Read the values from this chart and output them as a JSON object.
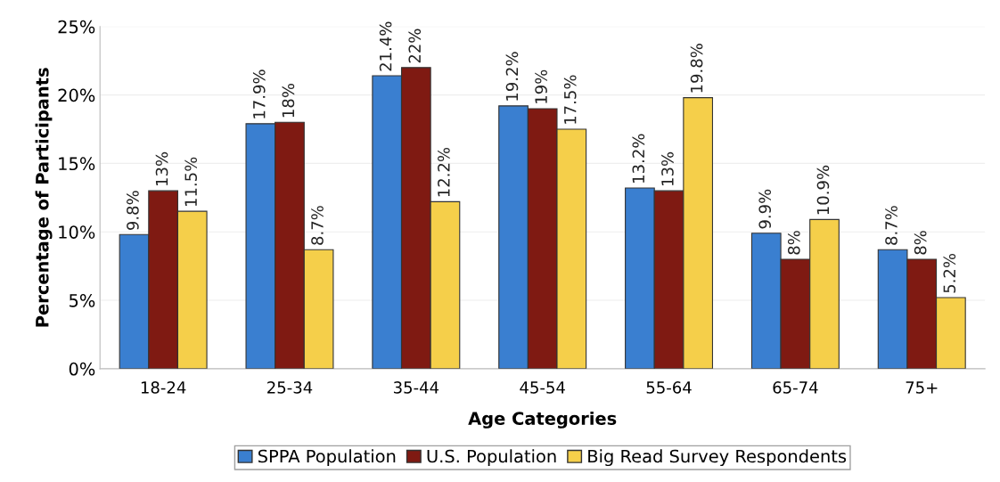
{
  "chart_data": {
    "type": "bar",
    "xlabel": "Age Categories",
    "ylabel": "Percentage of Participants",
    "categories": [
      "18-24",
      "25-34",
      "35-44",
      "45-54",
      "55-64",
      "65-74",
      "75+"
    ],
    "series": [
      {
        "name": "SPPA Population",
        "color": "#3a7fd0",
        "values": [
          9.8,
          17.9,
          21.4,
          19.2,
          13.2,
          9.9,
          8.7
        ],
        "value_labels": [
          "9.8%",
          "17.9%",
          "21.4%",
          "19.2%",
          "13.2%",
          "9.9%",
          "8.7%"
        ]
      },
      {
        "name": "U.S. Population",
        "color": "#7f1a12",
        "values": [
          13,
          18,
          22,
          19,
          13,
          8,
          8
        ],
        "value_labels": [
          "13%",
          "18%",
          "22%",
          "19%",
          "13%",
          "8%",
          "8%"
        ]
      },
      {
        "name": "Big Read Survey Respondents",
        "color": "#f5cf4a",
        "values": [
          11.5,
          8.7,
          12.2,
          17.5,
          19.8,
          10.9,
          5.2
        ],
        "value_labels": [
          "11.5%",
          "8.7%",
          "12.2%",
          "17.5%",
          "19.8%",
          "10.9%",
          "5.2%"
        ]
      }
    ],
    "ylim": [
      0,
      25
    ],
    "yticks": [
      {
        "value": 0,
        "label": "0%"
      },
      {
        "value": 5,
        "label": "5%"
      },
      {
        "value": 10,
        "label": "10%"
      },
      {
        "value": 15,
        "label": "15%"
      },
      {
        "value": 20,
        "label": "20%"
      },
      {
        "value": 25,
        "label": "25%"
      }
    ],
    "grid": "y",
    "legend": "bottom"
  }
}
